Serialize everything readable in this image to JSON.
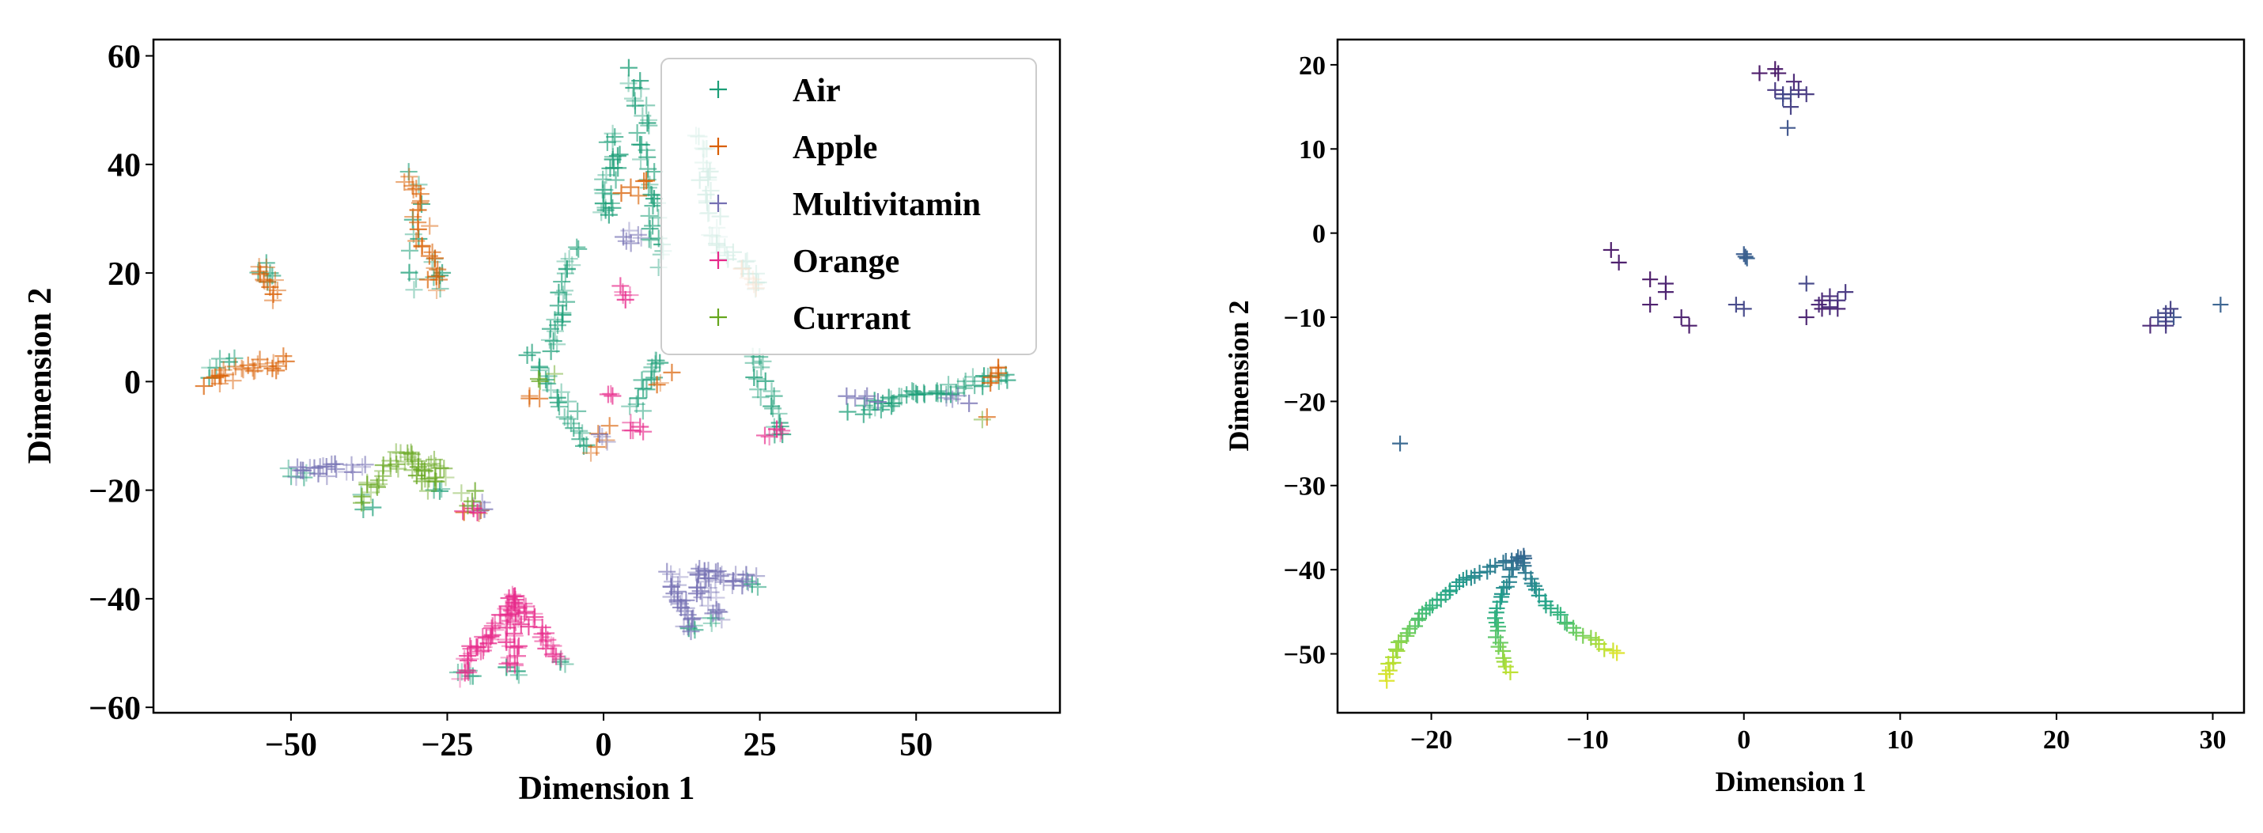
{
  "chart_data": [
    {
      "type": "scatter",
      "marker": "+",
      "title": "",
      "xlabel": "Dimension 1",
      "ylabel": "Dimension 2",
      "xlim": [
        -72,
        73
      ],
      "ylim": [
        -61,
        63
      ],
      "xticks": [
        -50,
        -25,
        0,
        25,
        50
      ],
      "yticks": [
        -60,
        -40,
        -20,
        0,
        20,
        40,
        60
      ],
      "legend_position": "top-right",
      "series": [
        {
          "name": "Air",
          "color": "#1b9e77",
          "clusters": [
            {
              "from": [
                5,
                57
              ],
              "to": [
                9,
                22
              ],
              "n": 40
            },
            {
              "from": [
                2,
                45
              ],
              "to": [
                0,
                30
              ],
              "n": 25
            },
            {
              "from": [
                15,
                45
              ],
              "to": [
                18,
                30
              ],
              "n": 20
            },
            {
              "from": [
                -5,
                25
              ],
              "to": [
                -8,
                5
              ],
              "n": 25
            },
            {
              "from": [
                -12,
                5
              ],
              "to": [
                -2,
                -12
              ],
              "n": 25
            },
            {
              "from": [
                5,
                -5
              ],
              "to": [
                9,
                5
              ],
              "n": 15
            },
            {
              "from": [
                17,
                28
              ],
              "to": [
                25,
                18
              ],
              "n": 20
            },
            {
              "from": [
                24,
                5
              ],
              "to": [
                28,
                -10
              ],
              "n": 20
            },
            {
              "from": [
                40,
                -5
              ],
              "to": [
                65,
                1
              ],
              "n": 45
            },
            {
              "from": [
                -30,
                38
              ],
              "to": [
                -30,
                16
              ],
              "n": 10
            },
            {
              "from": [
                -28,
                22
              ],
              "to": [
                -26,
                18
              ],
              "n": 6
            },
            {
              "from": [
                -63,
                1
              ],
              "to": [
                -60,
                5
              ],
              "n": 6
            },
            {
              "from": [
                -55,
                21
              ],
              "to": [
                -53,
                19
              ],
              "n": 5
            },
            {
              "from": [
                -50,
                -17
              ],
              "to": [
                -48,
                -17
              ],
              "n": 4
            },
            {
              "from": [
                -24,
                -54
              ],
              "to": [
                -21,
                -54
              ],
              "n": 5
            },
            {
              "from": [
                -15,
                -53
              ],
              "to": [
                -14,
                -53
              ],
              "n": 3
            },
            {
              "from": [
                -7,
                -51
              ],
              "to": [
                -6,
                -51
              ],
              "n": 3
            },
            {
              "from": [
                14,
                -46
              ],
              "to": [
                18,
                -43
              ],
              "n": 6
            },
            {
              "from": [
                24,
                -38
              ],
              "to": [
                23,
                -37
              ],
              "n": 3
            },
            {
              "from": [
                -38,
                -23
              ],
              "to": [
                -38,
                -21
              ],
              "n": 3
            },
            {
              "from": [
                -27,
                -19
              ],
              "to": [
                -26,
                -20
              ],
              "n": 3
            }
          ]
        },
        {
          "name": "Apple",
          "color": "#d95f02",
          "clusters": [
            {
              "from": [
                -63,
                0
              ],
              "to": [
                -51,
                4
              ],
              "n": 25
            },
            {
              "from": [
                -55,
                21
              ],
              "to": [
                -52,
                16
              ],
              "n": 12
            },
            {
              "from": [
                -31,
                38
              ],
              "to": [
                -27,
                17
              ],
              "n": 25
            },
            {
              "from": [
                4,
                35
              ],
              "to": [
                6,
                36
              ],
              "n": 5
            },
            {
              "from": [
                -2,
                -12
              ],
              "to": [
                2,
                -9
              ],
              "n": 5
            },
            {
              "from": [
                22,
                20
              ],
              "to": [
                25,
                18
              ],
              "n": 5
            },
            {
              "from": [
                62,
                0
              ],
              "to": [
                64,
                2
              ],
              "n": 6
            },
            {
              "from": [
                60,
                -6
              ],
              "to": [
                61,
                -6
              ],
              "n": 1
            },
            {
              "from": [
                -22,
                -24
              ],
              "to": [
                -20,
                -24
              ],
              "n": 3
            },
            {
              "from": [
                9,
                -1
              ],
              "to": [
                10,
                1
              ],
              "n": 3
            },
            {
              "from": [
                -12,
                -4
              ],
              "to": [
                -10,
                -2
              ],
              "n": 3
            }
          ]
        },
        {
          "name": "Multivitamin",
          "color": "#7570b3",
          "clusters": [
            {
              "from": [
                -50,
                -17
              ],
              "to": [
                -39,
                -16
              ],
              "n": 20
            },
            {
              "from": [
                -19,
                -23
              ],
              "to": [
                -21,
                -24
              ],
              "n": 4
            },
            {
              "from": [
                11,
                -36
              ],
              "to": [
                14,
                -45
              ],
              "n": 25
            },
            {
              "from": [
                15,
                -35
              ],
              "to": [
                18,
                -43
              ],
              "n": 20
            },
            {
              "from": [
                15,
                -35
              ],
              "to": [
                24,
                -37
              ],
              "n": 20
            },
            {
              "from": [
                3,
                27
              ],
              "to": [
                6,
                26
              ],
              "n": 6
            },
            {
              "from": [
                40,
                -3
              ],
              "to": [
                44,
                -4
              ],
              "n": 5
            },
            {
              "from": [
                55,
                -4
              ],
              "to": [
                58,
                -3
              ],
              "n": 4
            },
            {
              "from": [
                -1,
                -10
              ],
              "to": [
                1,
                -11
              ],
              "n": 3
            }
          ]
        },
        {
          "name": "Orange",
          "color": "#e7298a",
          "clusters": [
            {
              "from": [
                -23,
                -54
              ],
              "to": [
                -14,
                -40
              ],
              "n": 40
            },
            {
              "from": [
                -15,
                -53
              ],
              "to": [
                -14,
                -40
              ],
              "n": 25
            },
            {
              "from": [
                -7,
                -51
              ],
              "to": [
                -14,
                -40
              ],
              "n": 25
            },
            {
              "from": [
                3,
                17
              ],
              "to": [
                4,
                15
              ],
              "n": 5
            },
            {
              "from": [
                5,
                -8
              ],
              "to": [
                6,
                -10
              ],
              "n": 5
            },
            {
              "from": [
                27,
                -10
              ],
              "to": [
                28,
                -9
              ],
              "n": 5
            },
            {
              "from": [
                0,
                -3
              ],
              "to": [
                1,
                -3
              ],
              "n": 3
            },
            {
              "from": [
                -22,
                -25
              ],
              "to": [
                -21,
                -24
              ],
              "n": 3
            }
          ]
        },
        {
          "name": "Currant",
          "color": "#66a61e",
          "clusters": [
            {
              "from": [
                -39,
                -22
              ],
              "to": [
                -32,
                -13
              ],
              "n": 20
            },
            {
              "from": [
                -32,
                -13
              ],
              "to": [
                -27,
                -19
              ],
              "n": 20
            },
            {
              "from": [
                -27,
                -15
              ],
              "to": [
                -26,
                -17
              ],
              "n": 6
            },
            {
              "from": [
                -22,
                -20
              ],
              "to": [
                -21,
                -23
              ],
              "n": 4
            },
            {
              "from": [
                -10,
                0
              ],
              "to": [
                -9,
                2
              ],
              "n": 3
            },
            {
              "from": [
                60,
                -6
              ],
              "to": [
                61,
                -6
              ],
              "n": 1
            }
          ]
        }
      ]
    },
    {
      "type": "scatter",
      "marker": "+",
      "colormap": "viridis",
      "title": "",
      "xlabel": "Dimension 1",
      "ylabel": "Dimension 2",
      "xlim": [
        -26,
        32
      ],
      "ylim": [
        -57,
        23
      ],
      "xticks": [
        -20,
        -10,
        0,
        10,
        20,
        30
      ],
      "yticks": [
        -50,
        -40,
        -30,
        -20,
        -10,
        0,
        10,
        20
      ],
      "grid": false,
      "points": [
        {
          "x": 1,
          "y": 19,
          "c": 0.05
        },
        {
          "x": 2,
          "y": 19.5,
          "c": 0.05
        },
        {
          "x": 2.2,
          "y": 19,
          "c": 0.06
        },
        {
          "x": 2,
          "y": 17,
          "c": 0.15
        },
        {
          "x": 2.5,
          "y": 16.5,
          "c": 0.18
        },
        {
          "x": 3,
          "y": 16.5,
          "c": 0.2
        },
        {
          "x": 3.5,
          "y": 17,
          "c": 0.15
        },
        {
          "x": 4,
          "y": 16.5,
          "c": 0.16
        },
        {
          "x": 3,
          "y": 15,
          "c": 0.18
        },
        {
          "x": 2.5,
          "y": 16,
          "c": 0.22
        },
        {
          "x": 3.2,
          "y": 18,
          "c": 0.1
        },
        {
          "x": 2.8,
          "y": 12.5,
          "c": 0.25
        },
        {
          "x": -8.5,
          "y": -2,
          "c": 0.05
        },
        {
          "x": -8,
          "y": -3.5,
          "c": 0.06
        },
        {
          "x": -6,
          "y": -5.5,
          "c": 0.05
        },
        {
          "x": -5,
          "y": -6,
          "c": 0.08
        },
        {
          "x": -5,
          "y": -7,
          "c": 0.07
        },
        {
          "x": -6,
          "y": -8.5,
          "c": 0.06
        },
        {
          "x": -4,
          "y": -10,
          "c": 0.07
        },
        {
          "x": -3.5,
          "y": -11,
          "c": 0.06
        },
        {
          "x": 0,
          "y": -2.5,
          "c": 0.28
        },
        {
          "x": 0.2,
          "y": -3,
          "c": 0.3
        },
        {
          "x": 0.1,
          "y": -2.8,
          "c": 0.29
        },
        {
          "x": -0.5,
          "y": -8.5,
          "c": 0.2
        },
        {
          "x": 0,
          "y": -9,
          "c": 0.2
        },
        {
          "x": 4,
          "y": -6,
          "c": 0.2
        },
        {
          "x": 4,
          "y": -10,
          "c": 0.08
        },
        {
          "x": 5,
          "y": -8,
          "c": 0.1
        },
        {
          "x": 5.5,
          "y": -7.5,
          "c": 0.12
        },
        {
          "x": 6,
          "y": -8,
          "c": 0.14
        },
        {
          "x": 6.5,
          "y": -7,
          "c": 0.15
        },
        {
          "x": 6,
          "y": -9,
          "c": 0.1
        },
        {
          "x": 5,
          "y": -9,
          "c": 0.08
        },
        {
          "x": 4.8,
          "y": -8.5,
          "c": 0.1
        },
        {
          "x": 5.5,
          "y": -8.8,
          "c": 0.12
        },
        {
          "x": 26,
          "y": -11,
          "c": 0.1
        },
        {
          "x": 26.5,
          "y": -10,
          "c": 0.2
        },
        {
          "x": 27,
          "y": -9.5,
          "c": 0.2
        },
        {
          "x": 27,
          "y": -10.5,
          "c": 0.22
        },
        {
          "x": 27.5,
          "y": -10,
          "c": 0.25
        },
        {
          "x": 27,
          "y": -11,
          "c": 0.15
        },
        {
          "x": 27.3,
          "y": -9,
          "c": 0.18
        },
        {
          "x": 30.5,
          "y": -8.5,
          "c": 0.3
        },
        {
          "x": -22,
          "y": -25,
          "c": 0.32
        }
      ],
      "arcs": [
        {
          "from": [
            -14.2,
            -38.5
          ],
          "to": [
            -23,
            -53
          ],
          "via": [
            -21,
            -42
          ],
          "n": 40,
          "c_from": 0.32,
          "c_to": 0.95
        },
        {
          "from": [
            -14.2,
            -38.5
          ],
          "to": [
            -15,
            -52
          ],
          "via": [
            -17,
            -45
          ],
          "n": 25,
          "c_from": 0.32,
          "c_to": 0.9
        },
        {
          "from": [
            -14.2,
            -38.5
          ],
          "to": [
            -8,
            -50
          ],
          "via": [
            -13,
            -46
          ],
          "n": 25,
          "c_from": 0.32,
          "c_to": 0.95
        }
      ]
    }
  ],
  "legend": {
    "items": [
      {
        "label": "Air",
        "color": "#1b9e77"
      },
      {
        "label": "Apple",
        "color": "#d95f02"
      },
      {
        "label": "Multivitamin",
        "color": "#7570b3"
      },
      {
        "label": "Orange",
        "color": "#e7298a"
      },
      {
        "label": "Currant",
        "color": "#66a61e"
      }
    ]
  }
}
